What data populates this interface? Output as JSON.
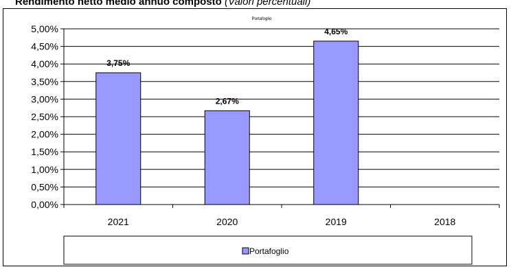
{
  "header": {
    "title_bold": "Rendimento netto medio annuo composto",
    "title_italic": "(Valori percentuali)"
  },
  "chart_data": {
    "type": "bar",
    "title": "Portafoglio",
    "categories": [
      "2021",
      "2020",
      "2019",
      "2018"
    ],
    "series": [
      {
        "name": "Portafoglio",
        "values": [
          3.75,
          2.67,
          4.65,
          null
        ],
        "labels": [
          "3,75%",
          "2,67%",
          "4,65%",
          ""
        ]
      }
    ],
    "yticks": [
      "0,00%",
      "0,50%",
      "1,00%",
      "1,50%",
      "2,00%",
      "2,50%",
      "3,00%",
      "3,50%",
      "4,00%",
      "4,50%",
      "5,00%"
    ],
    "ylim": [
      0,
      5
    ],
    "grid": true,
    "legend": "bottom",
    "colors": {
      "bar_fill": "#9999ff",
      "bar_stroke": "#000000",
      "grid": "#000000"
    }
  }
}
